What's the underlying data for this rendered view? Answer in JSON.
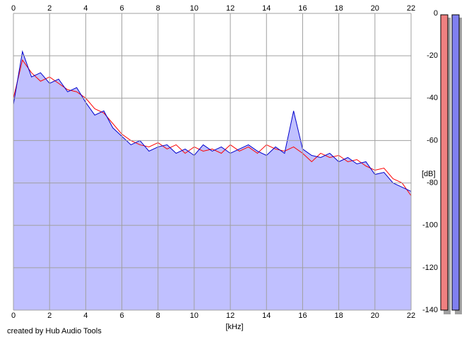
{
  "chart_data": {
    "type": "line",
    "x_label": "[kHz]",
    "y_label": "[dB]",
    "caption": "created by Hub Audio Tools",
    "x": [
      0,
      0.5,
      1,
      1.5,
      2,
      2.5,
      3,
      3.5,
      4,
      4.5,
      5,
      5.5,
      6,
      6.5,
      7,
      7.5,
      8,
      8.5,
      9,
      9.5,
      10,
      10.5,
      11,
      11.5,
      12,
      12.5,
      13,
      13.5,
      14,
      14.5,
      15,
      15.5,
      16,
      16.5,
      17,
      17.5,
      18,
      18.5,
      19,
      19.5,
      20,
      20.5,
      21,
      21.5,
      22
    ],
    "series": [
      {
        "color": "#ff0000",
        "values": [
          -40,
          -22,
          -28,
          -32,
          -30,
          -33,
          -36,
          -37,
          -40,
          -45,
          -47,
          -52,
          -57,
          -60,
          -62,
          -63,
          -61,
          -64,
          -62,
          -66,
          -63,
          -65,
          -64,
          -66,
          -62,
          -65,
          -63,
          -66,
          -62,
          -64,
          -65,
          -63,
          -66,
          -70,
          -66,
          -68,
          -67,
          -70,
          -69,
          -72,
          -74,
          -73,
          -78,
          -80,
          -86
        ]
      },
      {
        "color": "#0000cc",
        "fill": "#c0c0ff",
        "values": [
          -43,
          -18,
          -30,
          -28,
          -33,
          -31,
          -37,
          -35,
          -42,
          -48,
          -46,
          -54,
          -58,
          -62,
          -60,
          -65,
          -63,
          -62,
          -66,
          -64,
          -67,
          -62,
          -65,
          -63,
          -66,
          -64,
          -62,
          -65,
          -67,
          -63,
          -66,
          -46,
          -64,
          -67,
          -68,
          -66,
          -70,
          -68,
          -71,
          -70,
          -76,
          -75,
          -80,
          -82,
          -84
        ]
      }
    ],
    "xlim": [
      0,
      22
    ],
    "xticks": [
      0,
      2,
      4,
      6,
      8,
      10,
      12,
      14,
      16,
      18,
      20,
      22
    ],
    "ylim": [
      -140,
      0
    ],
    "yticks": [
      0,
      -20,
      -40,
      -60,
      -80,
      -100,
      -120,
      -140
    ],
    "grid": true
  }
}
